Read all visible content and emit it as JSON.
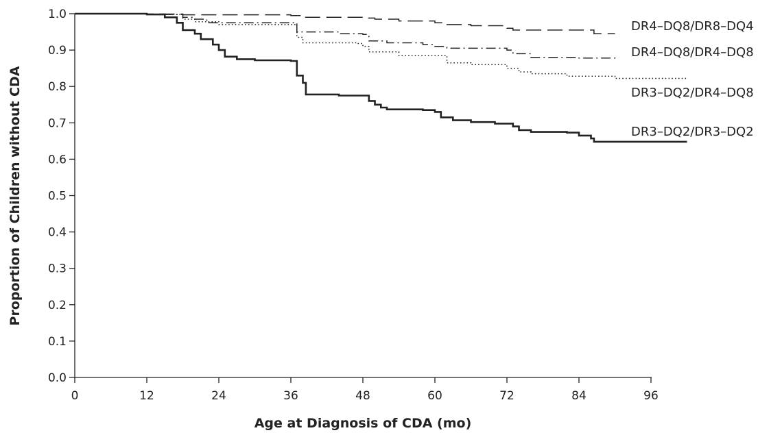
{
  "chart_data": {
    "type": "line",
    "title": "",
    "xlabel": "Age at Diagnosis of CDA (mo)",
    "ylabel": "Proportion of Children without CDA",
    "xlim": [
      0,
      96
    ],
    "ylim": [
      0.0,
      1.0
    ],
    "x_ticks": [
      "0",
      "12",
      "24",
      "36",
      "48",
      "60",
      "72",
      "84",
      "96"
    ],
    "y_ticks": [
      "0.0",
      "0.1",
      "0.2",
      "0.3",
      "0.4",
      "0.5",
      "0.6",
      "0.7",
      "0.8",
      "0.9",
      "1.0"
    ],
    "grid": false,
    "series": [
      {
        "name": "DR4–DQ8/DR8–DQ4",
        "style": "dashed",
        "color": "#222222",
        "points": [
          [
            0,
            1.0
          ],
          [
            11,
            1.0
          ],
          [
            12,
            0.999
          ],
          [
            18,
            0.997
          ],
          [
            36,
            0.995
          ],
          [
            38,
            0.99
          ],
          [
            48,
            0.988
          ],
          [
            50,
            0.985
          ],
          [
            54,
            0.98
          ],
          [
            60,
            0.975
          ],
          [
            62,
            0.97
          ],
          [
            66,
            0.967
          ],
          [
            72,
            0.96
          ],
          [
            73,
            0.955
          ],
          [
            86,
            0.955
          ],
          [
            86.5,
            0.945
          ],
          [
            90,
            0.945
          ]
        ]
      },
      {
        "name": "DR4–DQ8/DR4–DQ8",
        "style": "dashdot",
        "color": "#222222",
        "points": [
          [
            0,
            1.0
          ],
          [
            11,
            1.0
          ],
          [
            12,
            0.998
          ],
          [
            18,
            0.99
          ],
          [
            20,
            0.985
          ],
          [
            22,
            0.975
          ],
          [
            30,
            0.975
          ],
          [
            36,
            0.975
          ],
          [
            37,
            0.95
          ],
          [
            44,
            0.945
          ],
          [
            48,
            0.943
          ],
          [
            49,
            0.925
          ],
          [
            52,
            0.92
          ],
          [
            58,
            0.915
          ],
          [
            60,
            0.91
          ],
          [
            62,
            0.905
          ],
          [
            72,
            0.9
          ],
          [
            73,
            0.89
          ],
          [
            76,
            0.88
          ],
          [
            84,
            0.878
          ],
          [
            90,
            0.875
          ]
        ]
      },
      {
        "name": "DR3–DQ2/DR4–DQ8",
        "style": "dotted",
        "color": "#222222",
        "points": [
          [
            0,
            1.0
          ],
          [
            10,
            1.0
          ],
          [
            12,
            0.998
          ],
          [
            18,
            0.985
          ],
          [
            20,
            0.978
          ],
          [
            24,
            0.97
          ],
          [
            36,
            0.97
          ],
          [
            37,
            0.935
          ],
          [
            38,
            0.92
          ],
          [
            47,
            0.918
          ],
          [
            48,
            0.91
          ],
          [
            49,
            0.895
          ],
          [
            54,
            0.885
          ],
          [
            60,
            0.885
          ],
          [
            62,
            0.865
          ],
          [
            66,
            0.86
          ],
          [
            72,
            0.85
          ],
          [
            74,
            0.84
          ],
          [
            76,
            0.835
          ],
          [
            82,
            0.828
          ],
          [
            90,
            0.822
          ],
          [
            102,
            0.82
          ]
        ]
      },
      {
        "name": "DR3–DQ2/DR3–DQ2",
        "style": "solid",
        "color": "#222222",
        "points": [
          [
            0,
            1.0
          ],
          [
            10,
            1.0
          ],
          [
            12,
            0.998
          ],
          [
            15,
            0.99
          ],
          [
            17,
            0.975
          ],
          [
            18,
            0.955
          ],
          [
            20,
            0.945
          ],
          [
            21,
            0.93
          ],
          [
            23,
            0.915
          ],
          [
            24,
            0.9
          ],
          [
            25,
            0.882
          ],
          [
            27,
            0.875
          ],
          [
            30,
            0.872
          ],
          [
            36,
            0.87
          ],
          [
            37,
            0.83
          ],
          [
            38,
            0.81
          ],
          [
            38.5,
            0.778
          ],
          [
            44,
            0.775
          ],
          [
            48,
            0.775
          ],
          [
            49,
            0.76
          ],
          [
            50,
            0.75
          ],
          [
            51,
            0.742
          ],
          [
            52,
            0.737
          ],
          [
            58,
            0.735
          ],
          [
            60,
            0.73
          ],
          [
            61,
            0.715
          ],
          [
            63,
            0.707
          ],
          [
            66,
            0.702
          ],
          [
            70,
            0.698
          ],
          [
            73,
            0.69
          ],
          [
            74,
            0.68
          ],
          [
            76,
            0.675
          ],
          [
            82,
            0.673
          ],
          [
            84,
            0.665
          ],
          [
            86,
            0.657
          ],
          [
            86.5,
            0.648
          ],
          [
            94,
            0.648
          ],
          [
            102,
            0.648
          ]
        ]
      }
    ]
  }
}
